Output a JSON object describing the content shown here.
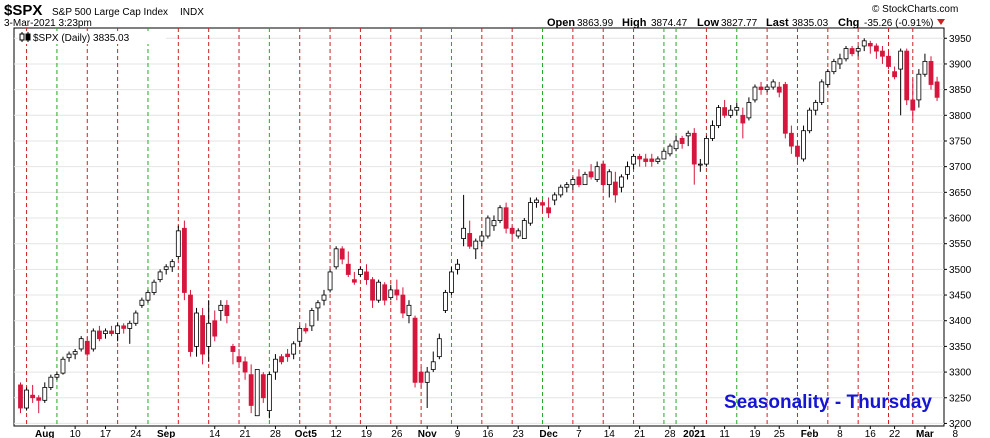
{
  "header": {
    "symbol": "$SPX",
    "name": "S&P 500 Large Cap Index",
    "exchange": "INDX",
    "datetime": "3-Mar-2021 3:23pm",
    "watermark": "© StockCharts.com",
    "open_label": "Open",
    "open": "3863.99",
    "high_label": "High",
    "high": "3874.47",
    "low_label": "Low",
    "low": "3827.77",
    "last_label": "Last",
    "last": "3835.03",
    "chg_label": "Chg",
    "chg": "-35.26 (-0.91%)",
    "legend": "$SPX (Daily) 3835.03",
    "annotation": "Seasonality - Thursday"
  },
  "colors": {
    "up": "#ffffff",
    "down": "#d6163c",
    "black_body": "#000000",
    "thursday_line": "#cc2222",
    "tuesday_line": "#22aa22",
    "annotation": "#1515d4"
  },
  "chart_data": {
    "type": "candlestick",
    "title": "$SPX S&P 500 Large Cap Index",
    "ylim": [
      3195,
      3970
    ],
    "y_ticks": [
      3200,
      3250,
      3300,
      3350,
      3400,
      3450,
      3500,
      3550,
      3600,
      3650,
      3700,
      3750,
      3800,
      3850,
      3900,
      3950
    ],
    "x_tick_labels": [
      {
        "label": "Aug",
        "i": 4
      },
      {
        "label": "10",
        "i": 9
      },
      {
        "label": "17",
        "i": 14
      },
      {
        "label": "24",
        "i": 19
      },
      {
        "label": "Sep",
        "i": 24
      },
      {
        "label": "14",
        "i": 32
      },
      {
        "label": "21",
        "i": 37
      },
      {
        "label": "28",
        "i": 42
      },
      {
        "label": "Oct5",
        "i": 47
      },
      {
        "label": "12",
        "i": 52
      },
      {
        "label": "19",
        "i": 57
      },
      {
        "label": "26",
        "i": 62
      },
      {
        "label": "Nov",
        "i": 67
      },
      {
        "label": "9",
        "i": 72
      },
      {
        "label": "16",
        "i": 77
      },
      {
        "label": "23",
        "i": 82
      },
      {
        "label": "Dec",
        "i": 87
      },
      {
        "label": "7",
        "i": 92
      },
      {
        "label": "14",
        "i": 97
      },
      {
        "label": "21",
        "i": 102
      },
      {
        "label": "28",
        "i": 107
      },
      {
        "label": "2021",
        "i": 111
      },
      {
        "label": "11",
        "i": 116
      },
      {
        "label": "19",
        "i": 121
      },
      {
        "label": "25",
        "i": 125
      },
      {
        "label": "Feb",
        "i": 130
      },
      {
        "label": "8",
        "i": 135
      },
      {
        "label": "16",
        "i": 140
      },
      {
        "label": "22",
        "i": 144
      },
      {
        "label": "Mar",
        "i": 149
      },
      {
        "label": "8",
        "i": 154
      }
    ],
    "thursday_indices": [
      1,
      11,
      16,
      26,
      31,
      36,
      46,
      51,
      56,
      61,
      66,
      76,
      81,
      91,
      96,
      101,
      113,
      123,
      128,
      133,
      138,
      143,
      147
    ],
    "tuesday_indices": [
      6,
      21,
      41,
      71,
      86,
      106,
      108,
      118
    ],
    "candles": [
      [
        3275,
        3280,
        3220,
        3230
      ],
      [
        3230,
        3270,
        3225,
        3265
      ],
      [
        3255,
        3275,
        3240,
        3250
      ],
      [
        3250,
        3255,
        3220,
        3245
      ],
      [
        3245,
        3280,
        3240,
        3270
      ],
      [
        3270,
        3295,
        3265,
        3290
      ],
      [
        3290,
        3300,
        3285,
        3295
      ],
      [
        3298,
        3330,
        3295,
        3325
      ],
      [
        3328,
        3340,
        3320,
        3335
      ],
      [
        3335,
        3345,
        3325,
        3340
      ],
      [
        3345,
        3370,
        3340,
        3365
      ],
      [
        3360,
        3368,
        3330,
        3335
      ],
      [
        3345,
        3385,
        3340,
        3380
      ],
      [
        3380,
        3390,
        3360,
        3365
      ],
      [
        3375,
        3385,
        3365,
        3380
      ],
      [
        3380,
        3390,
        3370,
        3375
      ],
      [
        3375,
        3395,
        3360,
        3390
      ],
      [
        3390,
        3395,
        3375,
        3385
      ],
      [
        3385,
        3400,
        3355,
        3395
      ],
      [
        3395,
        3420,
        3390,
        3415
      ],
      [
        3430,
        3445,
        3425,
        3440
      ],
      [
        3440,
        3460,
        3435,
        3455
      ],
      [
        3455,
        3480,
        3450,
        3475
      ],
      [
        3480,
        3500,
        3475,
        3495
      ],
      [
        3500,
        3510,
        3490,
        3505
      ],
      [
        3505,
        3520,
        3495,
        3515
      ],
      [
        3525,
        3585,
        3520,
        3575
      ],
      [
        3580,
        3595,
        3440,
        3455
      ],
      [
        3450,
        3460,
        3330,
        3340
      ],
      [
        3350,
        3425,
        3330,
        3415
      ],
      [
        3410,
        3425,
        3315,
        3335
      ],
      [
        3350,
        3440,
        3320,
        3395
      ],
      [
        3400,
        3420,
        3360,
        3370
      ],
      [
        3420,
        3440,
        3400,
        3430
      ],
      [
        3430,
        3440,
        3395,
        3410
      ],
      [
        3350,
        3355,
        3315,
        3340
      ],
      [
        3330,
        3345,
        3310,
        3320
      ],
      [
        3320,
        3330,
        3285,
        3300
      ],
      [
        3295,
        3315,
        3220,
        3235
      ],
      [
        3215,
        3300,
        3215,
        3305
      ],
      [
        3295,
        3300,
        3240,
        3250
      ],
      [
        3225,
        3300,
        3210,
        3295
      ],
      [
        3300,
        3335,
        3285,
        3325
      ],
      [
        3330,
        3335,
        3315,
        3320
      ],
      [
        3335,
        3345,
        3320,
        3330
      ],
      [
        3335,
        3360,
        3325,
        3355
      ],
      [
        3360,
        3390,
        3350,
        3385
      ],
      [
        3385,
        3395,
        3375,
        3380
      ],
      [
        3390,
        3425,
        3380,
        3420
      ],
      [
        3425,
        3440,
        3400,
        3435
      ],
      [
        3440,
        3460,
        3430,
        3450
      ],
      [
        3460,
        3500,
        3455,
        3495
      ],
      [
        3505,
        3545,
        3500,
        3540
      ],
      [
        3540,
        3545,
        3510,
        3520
      ],
      [
        3510,
        3535,
        3485,
        3490
      ],
      [
        3480,
        3495,
        3470,
        3475
      ],
      [
        3490,
        3505,
        3485,
        3500
      ],
      [
        3495,
        3510,
        3470,
        3480
      ],
      [
        3480,
        3485,
        3425,
        3440
      ],
      [
        3440,
        3480,
        3435,
        3475
      ],
      [
        3470,
        3475,
        3430,
        3440
      ],
      [
        3445,
        3470,
        3440,
        3460
      ],
      [
        3460,
        3480,
        3440,
        3450
      ],
      [
        3450,
        3465,
        3405,
        3415
      ],
      [
        3410,
        3440,
        3395,
        3430
      ],
      [
        3405,
        3410,
        3270,
        3280
      ],
      [
        3300,
        3310,
        3270,
        3280
      ],
      [
        3280,
        3310,
        3230,
        3300
      ],
      [
        3305,
        3340,
        3300,
        3320
      ],
      [
        3330,
        3375,
        3325,
        3365
      ],
      [
        3420,
        3460,
        3415,
        3455
      ],
      [
        3455,
        3505,
        3450,
        3495
      ],
      [
        3500,
        3520,
        3490,
        3510
      ],
      [
        3560,
        3645,
        3545,
        3580
      ],
      [
        3570,
        3595,
        3540,
        3545
      ],
      [
        3540,
        3560,
        3520,
        3555
      ],
      [
        3555,
        3575,
        3545,
        3565
      ],
      [
        3565,
        3605,
        3560,
        3600
      ],
      [
        3585,
        3605,
        3575,
        3595
      ],
      [
        3595,
        3625,
        3590,
        3620
      ],
      [
        3620,
        3630,
        3570,
        3580
      ],
      [
        3580,
        3585,
        3560,
        3570
      ],
      [
        3565,
        3580,
        3560,
        3575
      ],
      [
        3560,
        3600,
        3560,
        3595
      ],
      [
        3590,
        3640,
        3585,
        3630
      ],
      [
        3630,
        3640,
        3620,
        3635
      ],
      [
        3630,
        3635,
        3610,
        3625
      ],
      [
        3620,
        3640,
        3600,
        3610
      ],
      [
        3635,
        3650,
        3625,
        3645
      ],
      [
        3645,
        3665,
        3640,
        3660
      ],
      [
        3660,
        3670,
        3650,
        3665
      ],
      [
        3665,
        3680,
        3655,
        3675
      ],
      [
        3680,
        3695,
        3660,
        3665
      ],
      [
        3665,
        3690,
        3665,
        3685
      ],
      [
        3690,
        3705,
        3675,
        3680
      ],
      [
        3675,
        3710,
        3670,
        3700
      ],
      [
        3705,
        3712,
        3655,
        3665
      ],
      [
        3665,
        3695,
        3640,
        3690
      ],
      [
        3670,
        3690,
        3630,
        3645
      ],
      [
        3660,
        3685,
        3650,
        3680
      ],
      [
        3685,
        3710,
        3675,
        3700
      ],
      [
        3705,
        3725,
        3695,
        3720
      ],
      [
        3720,
        3725,
        3700,
        3715
      ],
      [
        3715,
        3725,
        3700,
        3710
      ],
      [
        3715,
        3725,
        3700,
        3710
      ],
      [
        3710,
        3720,
        3705,
        3715
      ],
      [
        3715,
        3735,
        3715,
        3730
      ],
      [
        3725,
        3745,
        3720,
        3740
      ],
      [
        3735,
        3760,
        3730,
        3750
      ],
      [
        3755,
        3760,
        3735,
        3745
      ],
      [
        3760,
        3770,
        3740,
        3765
      ],
      [
        3765,
        3775,
        3665,
        3705
      ],
      [
        3705,
        3715,
        3690,
        3705
      ],
      [
        3705,
        3760,
        3700,
        3755
      ],
      [
        3755,
        3790,
        3750,
        3780
      ],
      [
        3780,
        3820,
        3775,
        3815
      ],
      [
        3815,
        3830,
        3795,
        3800
      ],
      [
        3800,
        3820,
        3795,
        3810
      ],
      [
        3810,
        3825,
        3800,
        3815
      ],
      [
        3800,
        3815,
        3755,
        3785
      ],
      [
        3795,
        3835,
        3790,
        3825
      ],
      [
        3830,
        3860,
        3825,
        3855
      ],
      [
        3855,
        3865,
        3840,
        3850
      ],
      [
        3850,
        3860,
        3845,
        3855
      ],
      [
        3855,
        3870,
        3850,
        3865
      ],
      [
        3855,
        3865,
        3835,
        3845
      ],
      [
        3860,
        3865,
        3755,
        3765
      ],
      [
        3765,
        3780,
        3725,
        3740
      ],
      [
        3740,
        3750,
        3705,
        3720
      ],
      [
        3715,
        3780,
        3710,
        3770
      ],
      [
        3770,
        3815,
        3765,
        3810
      ],
      [
        3810,
        3830,
        3800,
        3825
      ],
      [
        3825,
        3870,
        3820,
        3865
      ],
      [
        3860,
        3890,
        3855,
        3885
      ],
      [
        3885,
        3910,
        3880,
        3905
      ],
      [
        3900,
        3920,
        3890,
        3910
      ],
      [
        3910,
        3935,
        3905,
        3930
      ],
      [
        3930,
        3935,
        3915,
        3920
      ],
      [
        3925,
        3935,
        3915,
        3930
      ],
      [
        3935,
        3950,
        3925,
        3945
      ],
      [
        3940,
        3945,
        3920,
        3935
      ],
      [
        3935,
        3940,
        3910,
        3925
      ],
      [
        3925,
        3935,
        3900,
        3915
      ],
      [
        3915,
        3925,
        3890,
        3895
      ],
      [
        3885,
        3895,
        3870,
        3875
      ],
      [
        3890,
        3930,
        3800,
        3925
      ],
      [
        3925,
        3930,
        3820,
        3830
      ],
      [
        3830,
        3870,
        3790,
        3810
      ],
      [
        3830,
        3890,
        3815,
        3880
      ],
      [
        3880,
        3920,
        3875,
        3905
      ],
      [
        3905,
        3915,
        3850,
        3860
      ],
      [
        3865,
        3875,
        3828,
        3835
      ]
    ]
  }
}
